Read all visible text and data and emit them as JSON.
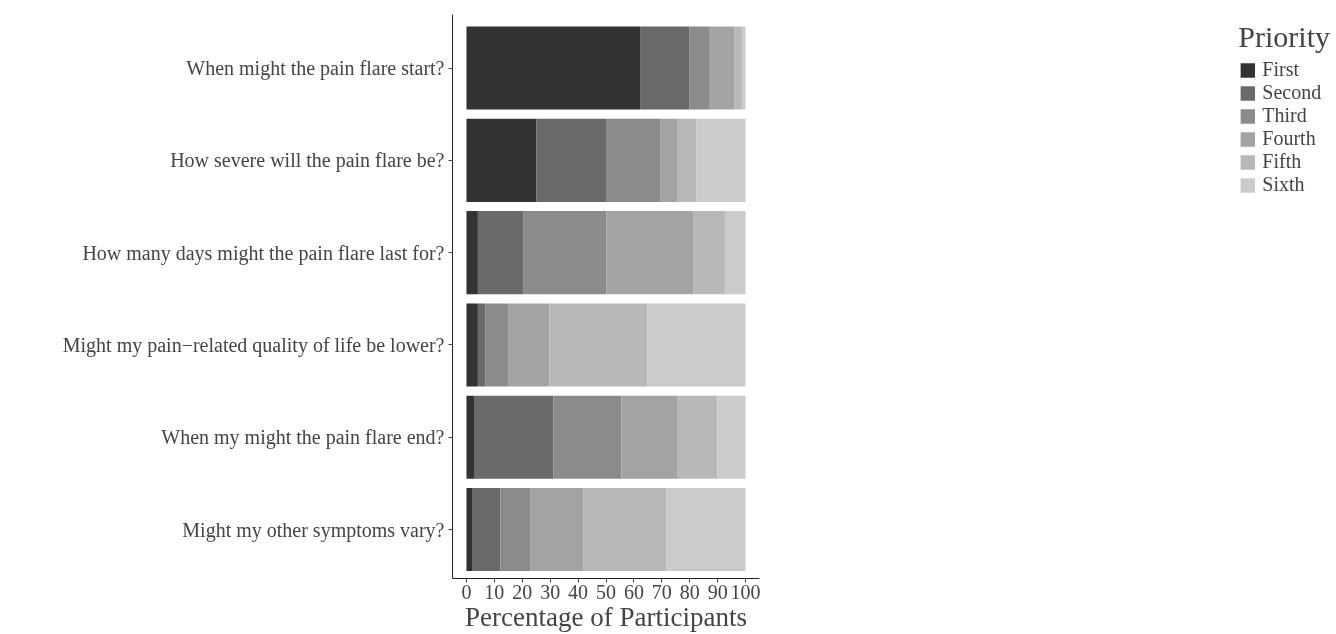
{
  "chart_data": {
    "type": "bar",
    "orientation": "horizontal",
    "stacked": true,
    "xlabel": "Percentage of Participants",
    "legend_title": "Priority",
    "legend": "right",
    "grid": false,
    "categories": [
      "When might the pain flare start?",
      "How severe will the pain flare be?",
      "How many days might the pain flare last for?",
      "Might my pain−related quality of life be lower?",
      "When my might the pain flare end?",
      "Might my other symptoms vary?"
    ],
    "xlim": [
      -5,
      105
    ],
    "xticks": [
      0,
      10,
      20,
      30,
      40,
      50,
      60,
      70,
      80,
      90,
      100
    ],
    "series": [
      {
        "name": "First",
        "color": "#333333",
        "values": [
          62.2,
          25.0,
          4.1,
          4.1,
          2.7,
          2.0
        ]
      },
      {
        "name": "Second",
        "color": "#6a6a6a",
        "values": [
          17.6,
          25.0,
          16.2,
          2.6,
          28.4,
          10.2
        ]
      },
      {
        "name": "Third",
        "color": "#8b8b8b",
        "values": [
          7.4,
          19.6,
          29.8,
          8.2,
          24.4,
          10.8
        ]
      },
      {
        "name": "Fourth",
        "color": "#a3a3a3",
        "values": [
          8.9,
          6.1,
          31.1,
          14.8,
          20.2,
          19.0
        ]
      },
      {
        "name": "Fifth",
        "color": "#b8b8b8",
        "values": [
          2.6,
          6.8,
          11.4,
          35.2,
          14.2,
          29.7
        ]
      },
      {
        "name": "Sixth",
        "color": "#cbcbcb",
        "values": [
          1.3,
          17.5,
          7.4,
          35.1,
          10.1,
          28.3
        ]
      }
    ]
  }
}
